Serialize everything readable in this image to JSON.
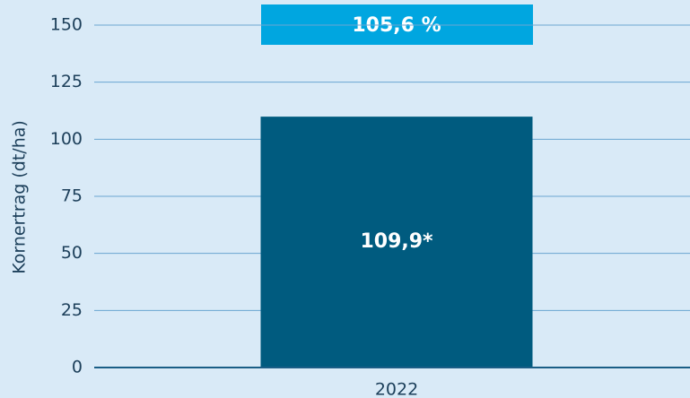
{
  "chart_data": {
    "type": "bar",
    "y_label": "Kornertrag (dt/ha)",
    "annotation": "105,6 %",
    "categories": [
      "2022"
    ],
    "values": [
      109.9
    ],
    "value_labels": [
      "109,9*"
    ],
    "color": "#005b7f",
    "ylim": [
      0,
      161
    ],
    "yticks": [
      0,
      25,
      50,
      75,
      100,
      125,
      150
    ],
    "grid": true
  }
}
